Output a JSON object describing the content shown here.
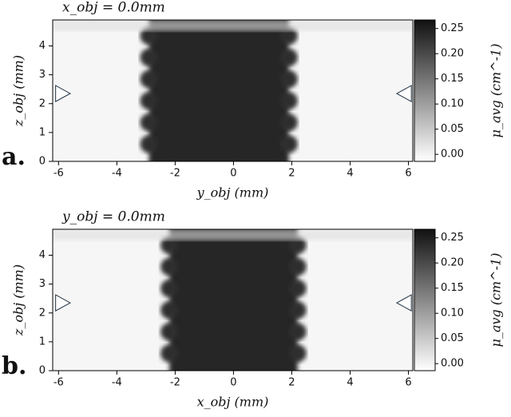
{
  "chart_data": [
    {
      "type": "heatmap",
      "panel": "a.",
      "title": "x_obj = 0.0mm",
      "xlabel": "y_obj (mm)",
      "ylabel": "z_obj (mm)",
      "colorbar_label": "μ_avg (cm^-1)",
      "xlim": [
        -6.2,
        6.15
      ],
      "xticks": [
        -6,
        -4,
        -2,
        0,
        2,
        4,
        6
      ],
      "ylim": [
        0,
        4.9
      ],
      "yticks": [
        0,
        1,
        2,
        3,
        4
      ],
      "clim": [
        -0.014,
        0.267
      ],
      "cticks": [
        {
          "value": 0,
          "label": "0.00"
        },
        0.05,
        {
          "value": 0.1,
          "label": "0.10"
        },
        0.15,
        {
          "value": 0.2,
          "label": "0.20"
        },
        0.25
      ]
    },
    {
      "type": "heatmap",
      "panel": "b.",
      "title": "y_obj = 0.0mm",
      "xlabel": "x_obj (mm)",
      "ylabel": "z_obj (mm)",
      "colorbar_label": "μ_avg (cm^-1)",
      "xlim": [
        -6.2,
        6.15
      ],
      "xticks": [
        -6,
        -4,
        -2,
        0,
        2,
        4,
        6
      ],
      "ylim": [
        0,
        4.9
      ],
      "yticks": [
        0,
        1,
        2,
        3,
        4
      ],
      "clim": [
        -0.014,
        0.267
      ],
      "cticks": [
        {
          "value": 0,
          "label": "0.00"
        },
        0.05,
        {
          "value": 0.1,
          "label": "0.10"
        },
        0.15,
        {
          "value": 0.2,
          "label": "0.20"
        },
        0.25
      ]
    }
  ]
}
